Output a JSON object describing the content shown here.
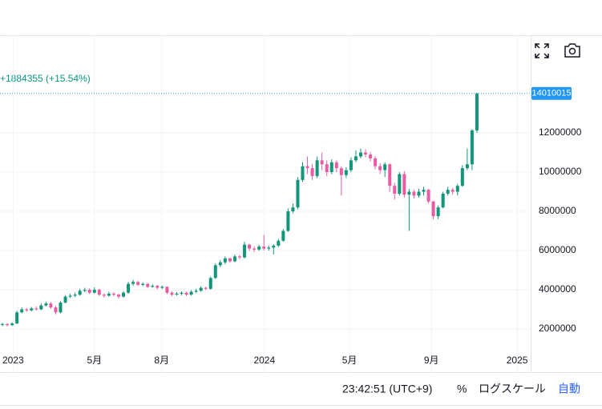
{
  "chart_data": {
    "type": "candlestick",
    "change_text": "+1884355 (+15.54%)",
    "up_color": "#12967a",
    "down_color": "#e85ca4",
    "price_line_color": "#2196f3",
    "open": [
      2220000,
      2250000,
      2200000,
      2280000,
      2850000,
      3000000,
      2950000,
      3050000,
      3000000,
      3200000,
      3300000,
      3100000,
      2850000,
      3350000,
      3650000,
      3700000,
      3750000,
      3950000,
      4000000,
      3850000,
      4000000,
      3750000,
      3700000,
      3800000,
      3750000,
      3650000,
      3850000,
      4300000,
      4400000,
      4250000,
      4300000,
      4150000,
      4200000,
      4100000,
      4150000,
      3850000,
      3750000,
      3800000,
      3850000,
      3750000,
      3900000,
      3950000,
      4100000,
      4050000,
      4600000,
      5250000,
      5400000,
      5600000,
      5450000,
      5700000,
      5650000,
      6300000,
      6100000,
      6050000,
      6200000,
      6100000,
      6150000,
      6250000,
      6500000,
      7000000,
      8000000,
      8200000,
      9600000,
      10300000,
      10200000,
      9800000,
      10600000,
      10400000,
      10000000,
      10500000,
      10200000,
      9850000,
      10100000,
      10600000,
      10800000,
      11000000,
      10900000,
      10700000,
      10300000,
      10100000,
      10400000,
      9300000,
      8900000,
      9900000,
      8850000,
      9000000,
      8800000,
      9000000,
      9100000,
      8500000,
      7750000,
      8200000,
      8900000,
      9100000,
      9000000,
      9300000,
      10200000,
      10400000,
      12125660
    ],
    "high": [
      2320000,
      2300000,
      2340000,
      2920000,
      3100000,
      3080000,
      3120000,
      3150000,
      3300000,
      3400000,
      3380000,
      3180000,
      3420000,
      3720000,
      3800000,
      3850000,
      4050000,
      4100000,
      4080000,
      4120000,
      4050000,
      3820000,
      3900000,
      3880000,
      3800000,
      3920000,
      4400000,
      4500000,
      4450000,
      4380000,
      4350000,
      4280000,
      4250000,
      4220000,
      4180000,
      3920000,
      3880000,
      3920000,
      3900000,
      3980000,
      4050000,
      4180000,
      4150000,
      4680000,
      5350000,
      5520000,
      5700000,
      5650000,
      5800000,
      5780000,
      6450000,
      6350000,
      6200000,
      6300000,
      6800000,
      6250000,
      6320000,
      6600000,
      7100000,
      8150000,
      8400000,
      9750000,
      10500000,
      10800000,
      10400000,
      10800000,
      11000000,
      10600000,
      10650000,
      10600000,
      10300000,
      10250000,
      10750000,
      11100000,
      11200000,
      11150000,
      11000000,
      10800000,
      10450000,
      10500000,
      10450000,
      9450000,
      10000000,
      10050000,
      9150000,
      9100000,
      9150000,
      9250000,
      9150000,
      8550000,
      8300000,
      9000000,
      9250000,
      9200000,
      9400000,
      10350000,
      11200000,
      12200000,
      14050000
    ],
    "low": [
      2140000,
      2120000,
      2150000,
      2250000,
      2800000,
      2880000,
      2900000,
      2940000,
      2960000,
      3150000,
      3020000,
      2750000,
      2800000,
      3300000,
      3580000,
      3620000,
      3700000,
      3880000,
      3780000,
      3800000,
      3680000,
      3600000,
      3650000,
      3660000,
      3550000,
      3600000,
      3800000,
      4200000,
      4180000,
      4180000,
      4080000,
      4100000,
      4020000,
      4040000,
      3780000,
      3680000,
      3700000,
      3720000,
      3680000,
      3700000,
      3840000,
      3900000,
      3980000,
      4000000,
      4550000,
      5150000,
      5300000,
      5380000,
      5400000,
      5550000,
      5600000,
      5980000,
      5920000,
      5980000,
      6000000,
      6000000,
      5800000,
      6180000,
      6450000,
      6950000,
      7900000,
      8100000,
      9500000,
      9900000,
      9600000,
      9700000,
      10100000,
      9800000,
      9900000,
      10000000,
      8800000,
      9700000,
      10000000,
      10500000,
      10700000,
      10750000,
      10550000,
      10150000,
      9900000,
      9750000,
      9000000,
      8600000,
      8800000,
      8700000,
      7000000,
      8650000,
      8700000,
      8800000,
      8400000,
      7600000,
      7600000,
      8150000,
      8800000,
      8850000,
      8800000,
      9250000,
      10100000,
      10100000,
      12000000
    ],
    "close": [
      2250000,
      2200000,
      2280000,
      2850000,
      3000000,
      2950000,
      3050000,
      3000000,
      3200000,
      3300000,
      3100000,
      2850000,
      3350000,
      3650000,
      3700000,
      3750000,
      3950000,
      4000000,
      3850000,
      4000000,
      3750000,
      3700000,
      3800000,
      3750000,
      3650000,
      3850000,
      4300000,
      4400000,
      4250000,
      4300000,
      4150000,
      4200000,
      4100000,
      4150000,
      3850000,
      3750000,
      3800000,
      3850000,
      3750000,
      3900000,
      3950000,
      4100000,
      4050000,
      4600000,
      5250000,
      5400000,
      5600000,
      5450000,
      5700000,
      5650000,
      6300000,
      6100000,
      6050000,
      6200000,
      6100000,
      6150000,
      6250000,
      6500000,
      7000000,
      8000000,
      8200000,
      9600000,
      10300000,
      10200000,
      9800000,
      10600000,
      10400000,
      10000000,
      10500000,
      10200000,
      9850000,
      10100000,
      10600000,
      10800000,
      11000000,
      10900000,
      10700000,
      10300000,
      10100000,
      10400000,
      9300000,
      8900000,
      9900000,
      8850000,
      9000000,
      8800000,
      9000000,
      9100000,
      8500000,
      7750000,
      8200000,
      8900000,
      9100000,
      9000000,
      9300000,
      10200000,
      10400000,
      12125660,
      14010015
    ],
    "ylim": [
      940000,
      16980000
    ],
    "yticks": [
      2000000,
      4000000,
      6000000,
      8000000,
      10000000,
      12000000
    ],
    "xlim": [
      -0.5,
      109.1
    ],
    "xticks": [
      {
        "value": 2.2,
        "label": "2023"
      },
      {
        "value": 19,
        "label": "5月"
      },
      {
        "value": 32.9,
        "label": "8月"
      },
      {
        "value": 54.1,
        "label": "2024"
      },
      {
        "value": 71.7,
        "label": "5月"
      },
      {
        "value": 88.6,
        "label": "9月"
      },
      {
        "value": 106.3,
        "label": "2025"
      }
    ],
    "grid": true
  },
  "footer": {
    "time": "23:42:51 (UTC+9)",
    "percent": "%",
    "log": "ログスケール",
    "auto": "自動"
  }
}
